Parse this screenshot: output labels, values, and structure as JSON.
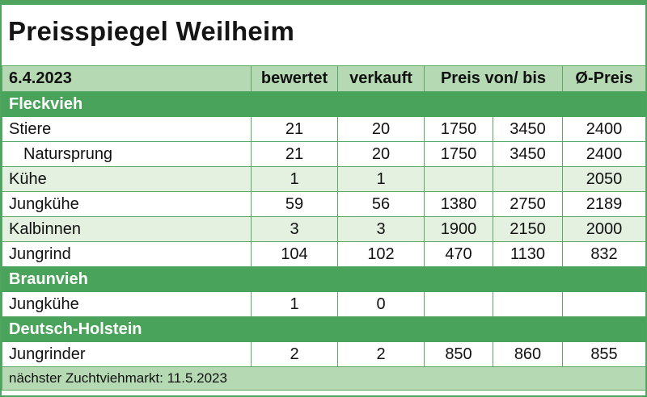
{
  "title": "Preisspiegel Weilheim",
  "header": {
    "date": "6.4.2023",
    "col_bewertet": "bewertet",
    "col_verkauft": "verkauft",
    "col_preis": "Preis von/ bis",
    "col_avg": "Ø-Preis"
  },
  "sections": [
    {
      "name": "Fleckvieh",
      "rows": [
        {
          "label": "Stiere",
          "bewertet": "21",
          "verkauft": "20",
          "von": "1750",
          "bis": "3450",
          "avg": "2400"
        },
        {
          "label": "Natursprung",
          "bewertet": "21",
          "verkauft": "20",
          "von": "1750",
          "bis": "3450",
          "avg": "2400"
        },
        {
          "label": "Kühe",
          "bewertet": "1",
          "verkauft": "1",
          "von": "",
          "bis": "",
          "avg": "2050"
        },
        {
          "label": "Jungkühe",
          "bewertet": "59",
          "verkauft": "56",
          "von": "1380",
          "bis": "2750",
          "avg": "2189"
        },
        {
          "label": "Kalbinnen",
          "bewertet": "3",
          "verkauft": "3",
          "von": "1900",
          "bis": "2150",
          "avg": "2000"
        },
        {
          "label": "Jungrind",
          "bewertet": "104",
          "verkauft": "102",
          "von": "470",
          "bis": "1130",
          "avg": "832"
        }
      ]
    },
    {
      "name": "Braunvieh",
      "rows": [
        {
          "label": "Jungkühe",
          "bewertet": "1",
          "verkauft": "0",
          "von": "",
          "bis": "",
          "avg": ""
        }
      ]
    },
    {
      "name": "Deutsch-Holstein",
      "rows": [
        {
          "label": "Jungrinder",
          "bewertet": "2",
          "verkauft": "2",
          "von": "850",
          "bis": "860",
          "avg": "855"
        }
      ]
    }
  ],
  "footer": "nächster Zuchtviehmarkt: 11.5.2023",
  "colors": {
    "section_green": "#4aa35b",
    "header_green": "#b5d9b3",
    "shade_green": "#e4f1e1"
  }
}
